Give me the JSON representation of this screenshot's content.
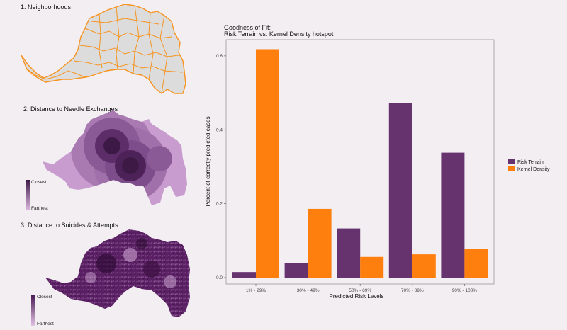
{
  "maps": {
    "neighborhoods": {
      "title": "1. Neighborhoods",
      "stroke": "#f7931e",
      "fill": "#dcdcdc"
    },
    "needle": {
      "title": "2. Distance to Needle Exchanges",
      "legend_low": "Closest",
      "legend_high": "Farthest",
      "color_dark": "#3d1a46",
      "color_light": "#d8b4dc"
    },
    "suicides": {
      "title": "3. Distance to Suicides & Attempts",
      "legend_low": "Closest",
      "legend_high": "Farthest",
      "color_dark": "#4a1553",
      "color_light": "#e0c4e3"
    }
  },
  "chart_data": {
    "type": "bar",
    "title_line1": "Goodness of Fit:",
    "title_line2": "Risk Terrain vs. Kernel Density hotspot",
    "xlabel": "Predicted Risk Levels",
    "ylabel": "Percent of correctly predicted cases",
    "categories": [
      "1% - 29%",
      "30% - 49%",
      "50% - 69%",
      "70% - 89%",
      "90% - 100%"
    ],
    "series": [
      {
        "name": "Risk Terrain",
        "color": "#66336f",
        "values": [
          0.015,
          0.04,
          0.133,
          0.472,
          0.338
        ]
      },
      {
        "name": "Kernel Density",
        "color": "#ff7f0e",
        "values": [
          0.618,
          0.186,
          0.056,
          0.063,
          0.078
        ]
      }
    ],
    "ylim": [
      0,
      0.64
    ],
    "yticks": [
      "0.0",
      "0.2",
      "0.4",
      "0.6"
    ],
    "ytick_values": [
      0,
      0.2,
      0.4,
      0.6
    ],
    "legend_position": "right"
  }
}
